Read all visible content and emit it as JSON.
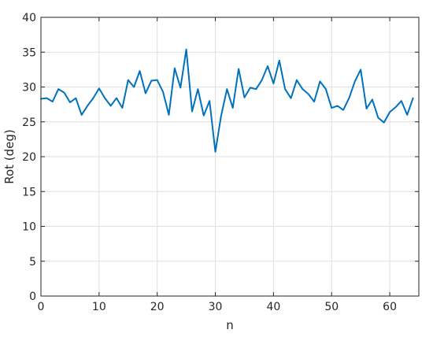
{
  "chart_data": {
    "type": "line",
    "title": "",
    "xlabel": "n",
    "ylabel": "Rot (deg)",
    "xlim": [
      0,
      65
    ],
    "ylim": [
      0,
      40
    ],
    "xticks": [
      0,
      10,
      20,
      30,
      40,
      50,
      60
    ],
    "yticks": [
      0,
      5,
      10,
      15,
      20,
      25,
      30,
      35,
      40
    ],
    "grid": true,
    "legend": "none",
    "colors": {
      "series": "#0072BD",
      "axis": "#262626",
      "grid": "#dfdfdf"
    },
    "series": [
      {
        "x": [
          0,
          1,
          2,
          3,
          4,
          5,
          6,
          7,
          8,
          9,
          10,
          11,
          12,
          13,
          14,
          15,
          16,
          17,
          18,
          19,
          20,
          21,
          22,
          23,
          24,
          25,
          26,
          27,
          28,
          29,
          30,
          31,
          32,
          33,
          34,
          35,
          36,
          37,
          38,
          39,
          40,
          41,
          42,
          43,
          44,
          45,
          46,
          47,
          48,
          49,
          50,
          51,
          52,
          53,
          54,
          55,
          56,
          57,
          58,
          59,
          60,
          61,
          62,
          63,
          64
        ],
        "values": [
          28.3,
          28.4,
          27.9,
          29.7,
          29.2,
          27.8,
          28.4,
          26.0,
          27.3,
          28.4,
          29.8,
          28.4,
          27.3,
          28.4,
          27.0,
          31.0,
          30.0,
          32.3,
          29.1,
          30.9,
          31.0,
          29.3,
          26.0,
          32.7,
          29.9,
          35.4,
          26.5,
          29.7,
          25.9,
          28.0,
          20.7,
          25.9,
          29.7,
          27.0,
          32.6,
          28.5,
          29.9,
          29.7,
          31.0,
          33.0,
          30.5,
          33.8,
          29.7,
          28.4,
          31.0,
          29.7,
          29.0,
          27.9,
          30.8,
          29.7,
          27.0,
          27.3,
          26.7,
          28.4,
          30.8,
          32.5,
          26.9,
          28.2,
          25.6,
          24.9,
          26.4,
          27.1,
          28.0,
          26.0,
          28.4
        ]
      }
    ]
  }
}
